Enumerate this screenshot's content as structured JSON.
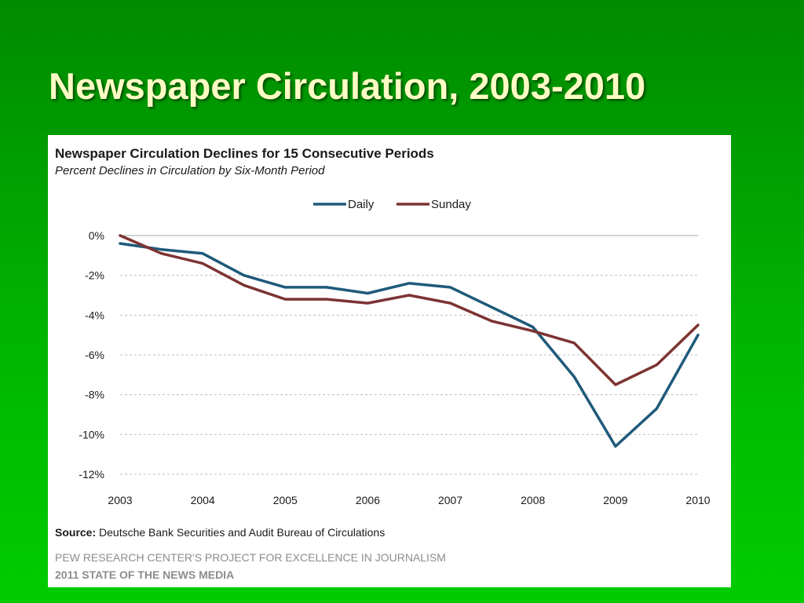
{
  "slide": {
    "title": "Newspaper Circulation, 2003-2010"
  },
  "footer": {
    "source_label": "Source:",
    "source_text": "Deutsche Bank Securities and Audit Bureau of Circulations",
    "credit_line1": "PEW RESEARCH CENTER'S PROJECT FOR EXCELLENCE IN JOURNALISM",
    "credit_line2": "2011 STATE OF THE NEWS MEDIA"
  },
  "colors": {
    "background": "#00a800",
    "title": "#fdfbc4",
    "daily": "#1f5a7a",
    "sunday": "#7d3333"
  },
  "chart_data": {
    "type": "line",
    "title": "Newspaper Circulation Declines for 15 Consecutive Periods",
    "subtitle": "Percent Declines in Circulation by Six-Month Period",
    "legend_position": "top-center",
    "grid": true,
    "x_tick_labels": [
      "2003",
      "2004",
      "2005",
      "2006",
      "2007",
      "2008",
      "2009",
      "2010"
    ],
    "y_tick_labels": [
      "0%",
      "-2%",
      "-4%",
      "-6%",
      "-8%",
      "-10%",
      "-12%"
    ],
    "y_ticks": [
      0,
      -2,
      -4,
      -6,
      -8,
      -10,
      -12
    ],
    "ylim": [
      -12,
      0
    ],
    "xlim": [
      2003,
      2010
    ],
    "x": [
      2003,
      2003.5,
      2004,
      2004.5,
      2005,
      2005.5,
      2006,
      2006.5,
      2007,
      2007.5,
      2008,
      2008.5,
      2009,
      2009.5,
      2010
    ],
    "series": [
      {
        "name": "Daily",
        "color": "#1f5a7a",
        "values": [
          -0.4,
          -0.7,
          -0.9,
          -2.0,
          -2.6,
          -2.6,
          -2.9,
          -2.4,
          -2.6,
          -3.6,
          -4.6,
          -7.1,
          -10.6,
          -8.7,
          -5.0
        ]
      },
      {
        "name": "Sunday",
        "color": "#7d3333",
        "values": [
          0.0,
          -0.9,
          -1.4,
          -2.5,
          -3.2,
          -3.2,
          -3.4,
          -3.0,
          -3.4,
          -4.3,
          -4.8,
          -5.4,
          -7.5,
          -6.5,
          -4.5
        ]
      }
    ]
  }
}
